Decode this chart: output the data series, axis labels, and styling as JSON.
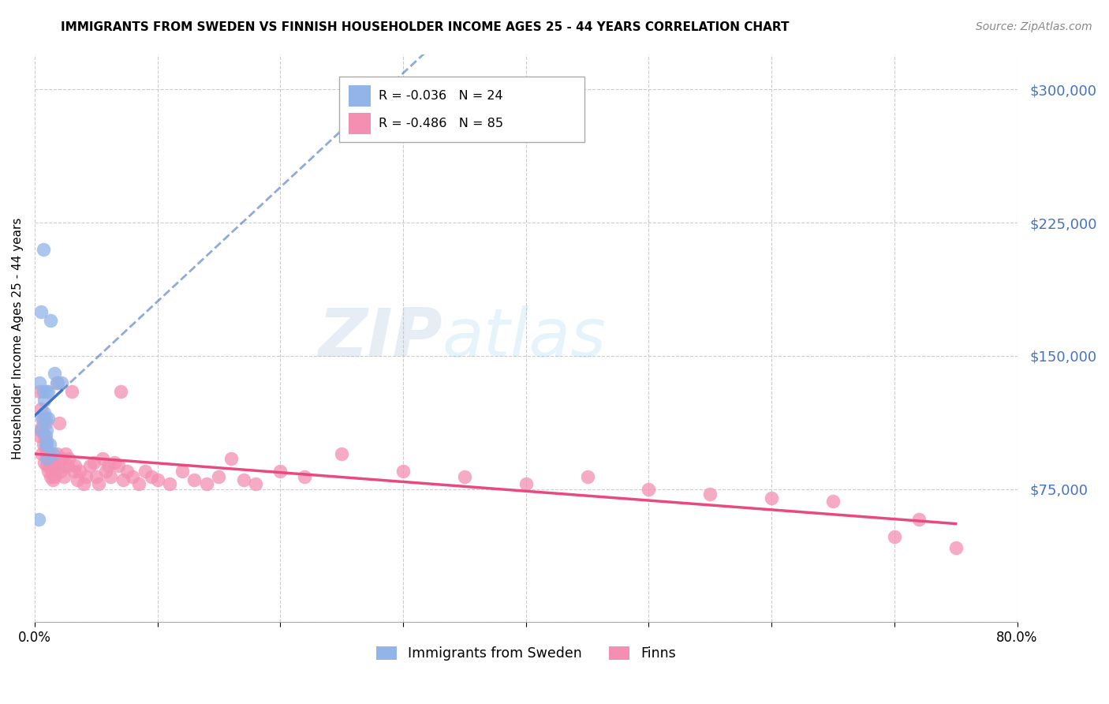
{
  "title": "IMMIGRANTS FROM SWEDEN VS FINNISH HOUSEHOLDER INCOME AGES 25 - 44 YEARS CORRELATION CHART",
  "source": "Source: ZipAtlas.com",
  "ylabel": "Householder Income Ages 25 - 44 years",
  "xlim": [
    0.0,
    0.8
  ],
  "ylim": [
    0,
    320000
  ],
  "yticks": [
    0,
    75000,
    150000,
    225000,
    300000
  ],
  "ytick_labels": [
    "",
    "$75,000",
    "$150,000",
    "$225,000",
    "$300,000"
  ],
  "xticks": [
    0.0,
    0.1,
    0.2,
    0.3,
    0.4,
    0.5,
    0.6,
    0.7,
    0.8
  ],
  "xtick_labels": [
    "0.0%",
    "",
    "",
    "",
    "",
    "",
    "",
    "",
    "80.0%"
  ],
  "watermark_zip": "ZIP",
  "watermark_atlas": "atlas",
  "legend_r1": "R = -0.036",
  "legend_n1": "N = 24",
  "legend_r2": "R = -0.486",
  "legend_n2": "N = 85",
  "label1": "Immigrants from Sweden",
  "label2": "Finns",
  "color1": "#92b4e8",
  "color2": "#f48fb1",
  "trend1_color": "#4472c4",
  "trend2_color": "#e84a7f",
  "axis_color": "#4472c4",
  "trend1_intercept": 155000,
  "trend1_slope": -100000,
  "trend2_intercept": 100000,
  "trend2_slope": -52000,
  "sweden_x": [
    0.003,
    0.004,
    0.005,
    0.005,
    0.006,
    0.007,
    0.007,
    0.008,
    0.008,
    0.009,
    0.009,
    0.009,
    0.01,
    0.01,
    0.01,
    0.01,
    0.011,
    0.011,
    0.012,
    0.013,
    0.015,
    0.016,
    0.018,
    0.022
  ],
  "sweden_y": [
    58000,
    135000,
    108000,
    175000,
    115000,
    130000,
    210000,
    118000,
    125000,
    100000,
    105000,
    115000,
    92000,
    100000,
    108000,
    130000,
    115000,
    130000,
    100000,
    170000,
    95000,
    140000,
    135000,
    135000
  ],
  "finns_x": [
    0.003,
    0.004,
    0.005,
    0.005,
    0.006,
    0.006,
    0.007,
    0.007,
    0.008,
    0.008,
    0.009,
    0.009,
    0.01,
    0.01,
    0.01,
    0.011,
    0.011,
    0.012,
    0.012,
    0.013,
    0.013,
    0.014,
    0.014,
    0.015,
    0.015,
    0.016,
    0.016,
    0.017,
    0.018,
    0.019,
    0.02,
    0.021,
    0.022,
    0.023,
    0.024,
    0.025,
    0.027,
    0.028,
    0.03,
    0.032,
    0.033,
    0.035,
    0.037,
    0.04,
    0.042,
    0.045,
    0.048,
    0.05,
    0.052,
    0.055,
    0.058,
    0.06,
    0.062,
    0.065,
    0.068,
    0.07,
    0.072,
    0.075,
    0.08,
    0.085,
    0.09,
    0.095,
    0.1,
    0.11,
    0.12,
    0.13,
    0.14,
    0.15,
    0.16,
    0.17,
    0.18,
    0.2,
    0.22,
    0.25,
    0.3,
    0.35,
    0.4,
    0.45,
    0.5,
    0.55,
    0.6,
    0.65,
    0.7,
    0.72,
    0.75
  ],
  "finns_y": [
    105000,
    130000,
    108000,
    120000,
    95000,
    110000,
    100000,
    115000,
    90000,
    105000,
    98000,
    112000,
    88000,
    95000,
    102000,
    85000,
    92000,
    88000,
    95000,
    82000,
    90000,
    85000,
    92000,
    80000,
    88000,
    82000,
    90000,
    88000,
    95000,
    135000,
    112000,
    85000,
    92000,
    88000,
    82000,
    95000,
    88000,
    92000,
    130000,
    85000,
    88000,
    80000,
    85000,
    78000,
    82000,
    88000,
    90000,
    82000,
    78000,
    92000,
    85000,
    88000,
    82000,
    90000,
    88000,
    130000,
    80000,
    85000,
    82000,
    78000,
    85000,
    82000,
    80000,
    78000,
    85000,
    80000,
    78000,
    82000,
    92000,
    80000,
    78000,
    85000,
    82000,
    95000,
    85000,
    82000,
    78000,
    82000,
    75000,
    72000,
    70000,
    68000,
    48000,
    58000,
    42000
  ]
}
